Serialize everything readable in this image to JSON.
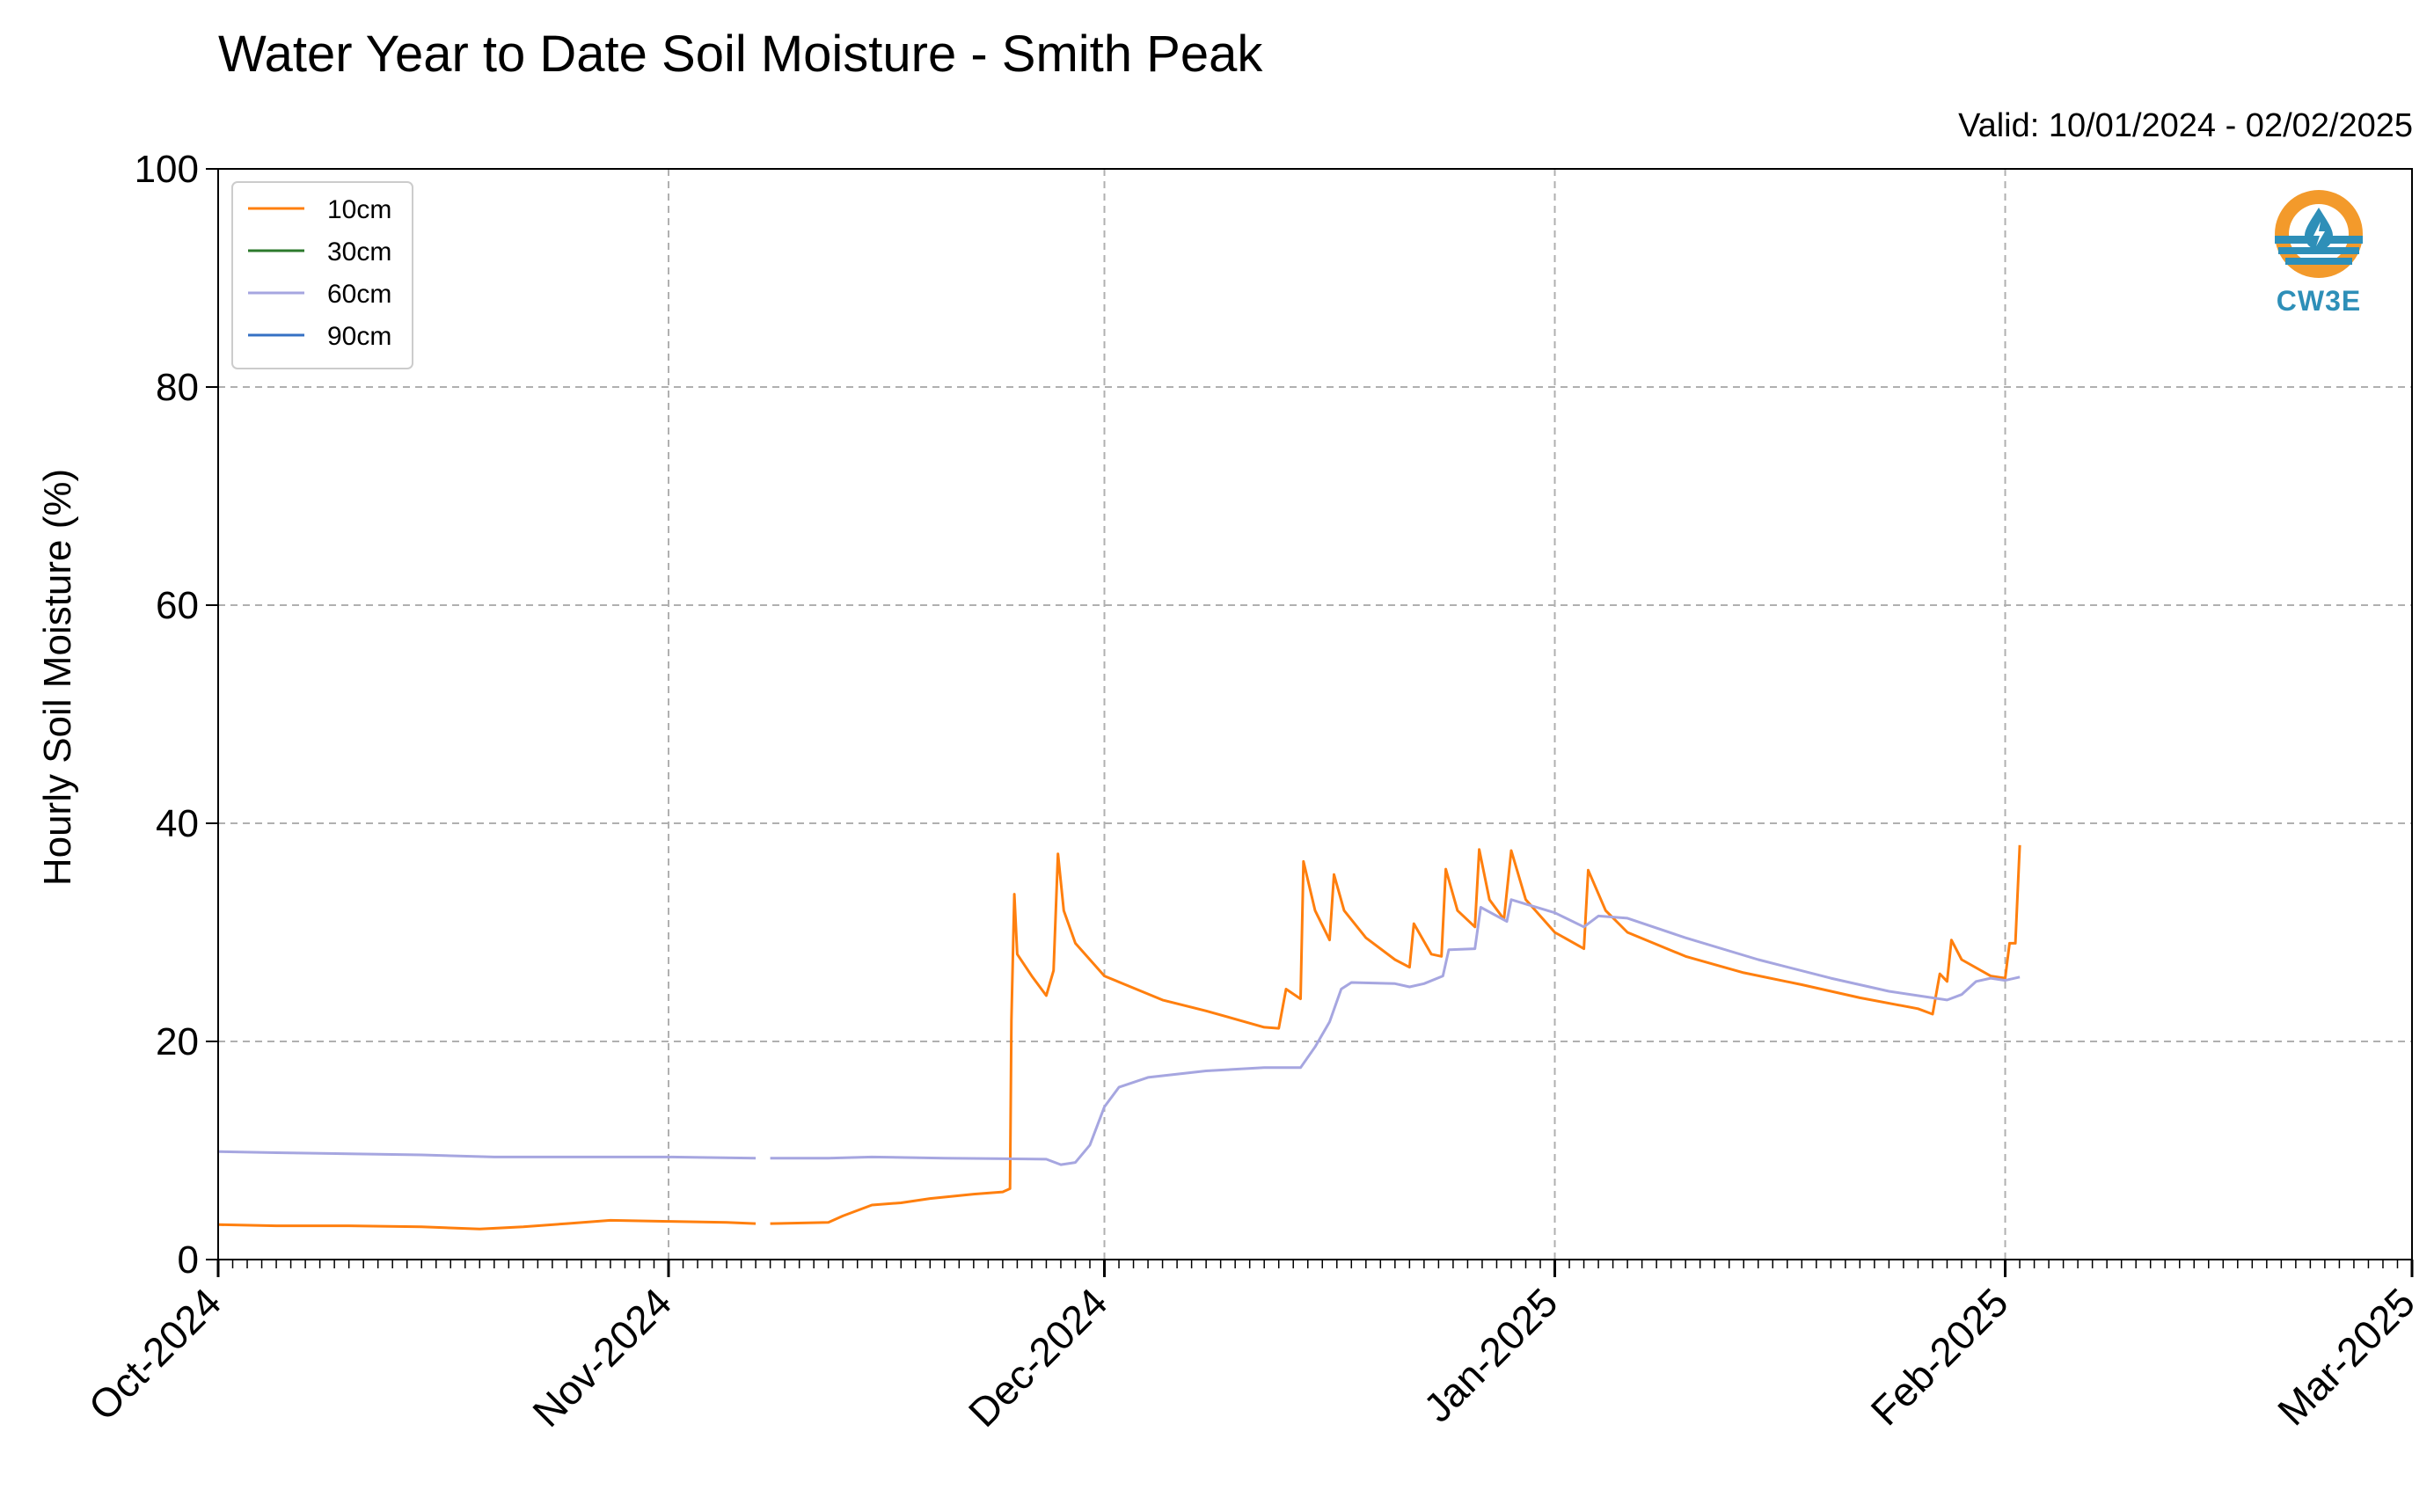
{
  "title": "Water Year to Date Soil Moisture - Smith Peak",
  "valid_text": "Valid: 10/01/2024 - 02/02/2025",
  "logo": {
    "icon": "water-drop-sun-icon",
    "text": "CW3E",
    "colors": {
      "orange": "#f39a2b",
      "blue": "#2e8fb8"
    }
  },
  "chart_data": {
    "type": "line",
    "title": "Water Year to Date Soil Moisture - Smith Peak",
    "xlabel": "",
    "ylabel": "Hourly Soil Moisture (%)",
    "xlim": [
      "2024-10-01",
      "2025-03-01"
    ],
    "ylim": [
      0,
      100
    ],
    "x_ticks": [
      "2024-10-01",
      "2024-11-01",
      "2024-12-01",
      "2025-01-01",
      "2025-02-01",
      "2025-03-01"
    ],
    "x_tick_labels": [
      "Oct-2024",
      "Nov-2024",
      "Dec-2024",
      "Jan-2025",
      "Feb-2025",
      "Mar-2025"
    ],
    "y_ticks": [
      0,
      20,
      40,
      60,
      80,
      100
    ],
    "y_tick_labels": [
      "0",
      "20",
      "40",
      "60",
      "80",
      "100"
    ],
    "grid": true,
    "legend_position": "top-left",
    "series": [
      {
        "name": "10cm",
        "color": "#ff7f0e",
        "segments": [
          [
            [
              "2024-10-01",
              3.2
            ],
            [
              "2024-10-05",
              3.1
            ],
            [
              "2024-10-10",
              3.1
            ],
            [
              "2024-10-15",
              3.0
            ],
            [
              "2024-10-19",
              2.8
            ],
            [
              "2024-10-22",
              3.0
            ],
            [
              "2024-10-25",
              3.3
            ],
            [
              "2024-10-28",
              3.6
            ],
            [
              "2024-11-01",
              3.5
            ],
            [
              "2024-11-05",
              3.4
            ],
            [
              "2024-11-07",
              3.3
            ]
          ],
          [
            [
              "2024-11-08",
              3.3
            ],
            [
              "2024-11-12",
              3.4
            ],
            [
              "2024-11-13",
              4.0
            ],
            [
              "2024-11-15",
              5.0
            ],
            [
              "2024-11-17",
              5.2
            ],
            [
              "2024-11-19",
              5.6
            ],
            [
              "2024-11-22",
              6.0
            ],
            [
              "2024-11-24",
              6.2
            ],
            [
              "2024-11-24.5",
              6.5
            ],
            [
              "2024-11-24.6",
              22.0
            ],
            [
              "2024-11-24.8",
              33.5
            ],
            [
              "2024-11-25",
              28.0
            ],
            [
              "2024-11-26",
              26.0
            ],
            [
              "2024-11-27",
              24.2
            ],
            [
              "2024-11-27.5",
              26.5
            ],
            [
              "2024-11-27.8",
              37.2
            ],
            [
              "2024-11-28.2",
              32.0
            ],
            [
              "2024-11-29",
              29.0
            ],
            [
              "2024-12-01",
              26.0
            ],
            [
              "2024-12-05",
              23.8
            ],
            [
              "2024-12-08",
              22.8
            ],
            [
              "2024-12-12",
              21.3
            ],
            [
              "2024-12-13",
              21.2
            ],
            [
              "2024-12-13.5",
              24.8
            ],
            [
              "2024-12-14.5",
              23.9
            ],
            [
              "2024-12-14.7",
              36.5
            ],
            [
              "2024-12-15.5",
              32.0
            ],
            [
              "2024-12-16.5",
              29.3
            ],
            [
              "2024-12-16.8",
              35.3
            ],
            [
              "2024-12-17.5",
              32.0
            ],
            [
              "2024-12-19",
              29.5
            ],
            [
              "2024-12-21",
              27.5
            ],
            [
              "2024-12-22",
              26.8
            ],
            [
              "2024-12-22.3",
              30.8
            ],
            [
              "2024-12-23.5",
              28.0
            ],
            [
              "2024-12-24.2",
              27.8
            ],
            [
              "2024-12-24.5",
              35.8
            ],
            [
              "2024-12-25.3",
              32.0
            ],
            [
              "2024-12-26.5",
              30.5
            ],
            [
              "2024-12-26.8",
              37.6
            ],
            [
              "2024-12-27.5",
              33.0
            ],
            [
              "2024-12-28.5",
              31.2
            ],
            [
              "2024-12-29",
              37.5
            ],
            [
              "2024-12-30",
              33.0
            ],
            [
              "2025-01-01",
              30.0
            ],
            [
              "2025-01-03",
              28.5
            ],
            [
              "2025-01-03.3",
              35.7
            ],
            [
              "2025-01-04.5",
              32.0
            ],
            [
              "2025-01-06",
              30.0
            ],
            [
              "2025-01-10",
              27.8
            ],
            [
              "2025-01-14",
              26.3
            ],
            [
              "2025-01-18",
              25.2
            ],
            [
              "2025-01-22",
              24.0
            ],
            [
              "2025-01-26",
              23.0
            ],
            [
              "2025-01-27",
              22.5
            ],
            [
              "2025-01-27.5",
              26.2
            ],
            [
              "2025-01-28",
              25.5
            ],
            [
              "2025-01-28.3",
              29.3
            ],
            [
              "2025-01-29",
              27.5
            ],
            [
              "2025-01-31",
              26.0
            ],
            [
              "2025-02-01",
              25.8
            ],
            [
              "2025-02-01.3",
              29.0
            ],
            [
              "2025-02-01.7",
              29.0
            ],
            [
              "2025-02-02",
              38.0
            ]
          ]
        ]
      },
      {
        "name": "30cm",
        "color": "#2c7a2c",
        "segments": []
      },
      {
        "name": "60cm",
        "color": "#a6a6e0",
        "segments": [
          [
            [
              "2024-10-01",
              9.9
            ],
            [
              "2024-10-05",
              9.8
            ],
            [
              "2024-10-10",
              9.7
            ],
            [
              "2024-10-15",
              9.6
            ],
            [
              "2024-10-20",
              9.4
            ],
            [
              "2024-10-25",
              9.4
            ],
            [
              "2024-11-01",
              9.4
            ],
            [
              "2024-11-07",
              9.3
            ]
          ],
          [
            [
              "2024-11-08",
              9.3
            ],
            [
              "2024-11-12",
              9.3
            ],
            [
              "2024-11-15",
              9.4
            ],
            [
              "2024-11-20",
              9.3
            ],
            [
              "2024-11-27",
              9.2
            ],
            [
              "2024-11-28",
              8.7
            ],
            [
              "2024-11-29",
              8.9
            ],
            [
              "2024-11-30",
              10.5
            ],
            [
              "2024-12-01",
              14.0
            ],
            [
              "2024-12-02",
              15.8
            ],
            [
              "2024-12-04",
              16.7
            ],
            [
              "2024-12-08",
              17.3
            ],
            [
              "2024-12-12",
              17.6
            ],
            [
              "2024-12-14.5",
              17.6
            ],
            [
              "2024-12-15.5",
              19.5
            ],
            [
              "2024-12-16.5",
              21.8
            ],
            [
              "2024-12-17.3",
              24.8
            ],
            [
              "2024-12-18",
              25.4
            ],
            [
              "2024-12-21",
              25.3
            ],
            [
              "2024-12-22",
              25.0
            ],
            [
              "2024-12-23",
              25.3
            ],
            [
              "2024-12-24.3",
              26.0
            ],
            [
              "2024-12-24.7",
              28.4
            ],
            [
              "2024-12-26.5",
              28.5
            ],
            [
              "2024-12-26.9",
              32.3
            ],
            [
              "2024-12-28.7",
              31.0
            ],
            [
              "2024-12-29",
              33.0
            ],
            [
              "2024-12-30",
              32.6
            ],
            [
              "2025-01-01",
              31.8
            ],
            [
              "2025-01-03",
              30.5
            ],
            [
              "2025-01-04",
              31.5
            ],
            [
              "2025-01-06",
              31.3
            ],
            [
              "2025-01-10",
              29.5
            ],
            [
              "2025-01-15",
              27.5
            ],
            [
              "2025-01-20",
              25.8
            ],
            [
              "2025-01-24",
              24.6
            ],
            [
              "2025-01-28",
              23.8
            ],
            [
              "2025-01-29",
              24.3
            ],
            [
              "2025-01-30",
              25.5
            ],
            [
              "2025-01-31",
              25.8
            ],
            [
              "2025-02-01",
              25.6
            ],
            [
              "2025-02-02",
              25.9
            ]
          ]
        ]
      },
      {
        "name": "90cm",
        "color": "#3570c4",
        "segments": []
      }
    ]
  }
}
